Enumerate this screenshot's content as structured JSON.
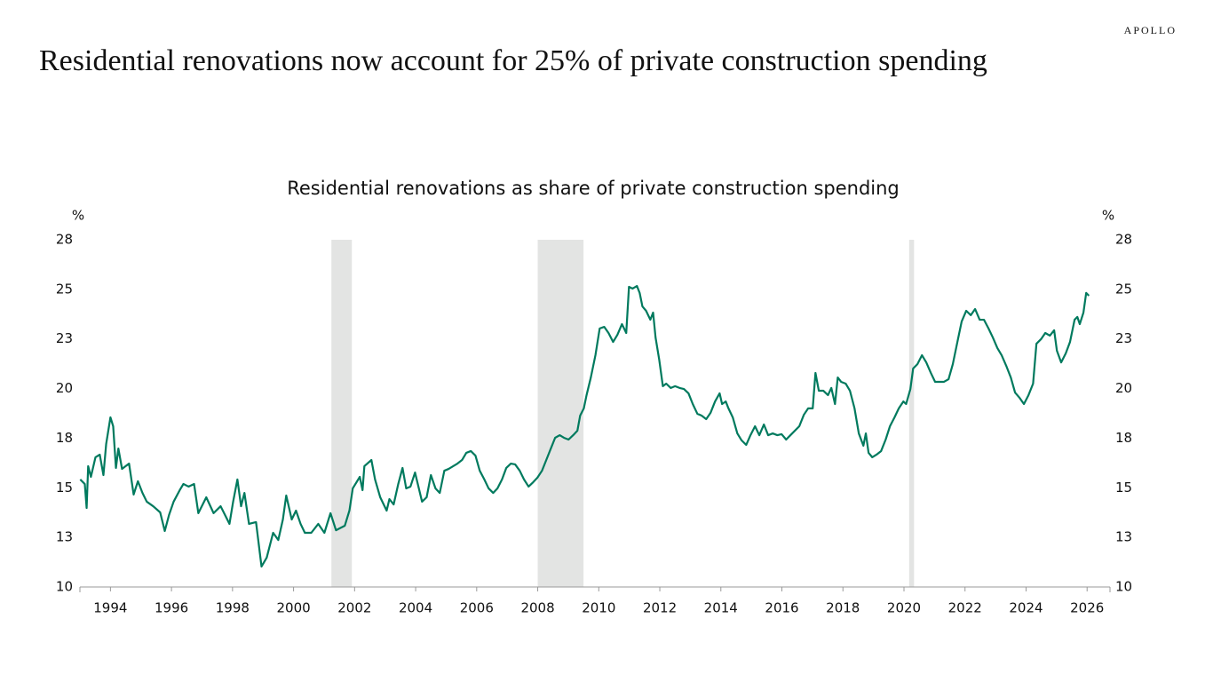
{
  "brand": "APOLLO",
  "title": "Residential renovations now account for 25% of private construction spending",
  "chart_data": {
    "type": "line",
    "subtitle": "Residential renovations as share of private construction spending",
    "y_unit": "%",
    "color": "#007a5e",
    "shade_color": "#e3e4e3",
    "shaded_ranges": [
      [
        2001.24,
        2001.91
      ],
      [
        2008.0,
        2009.5
      ],
      [
        2020.17,
        2020.33
      ]
    ],
    "xlim": [
      1993,
      2026.75
    ],
    "xticks": [
      1994,
      1996,
      1998,
      2000,
      2002,
      2004,
      2006,
      2008,
      2010,
      2012,
      2014,
      2016,
      2018,
      2020,
      2022,
      2024,
      2026
    ],
    "ylim": [
      10,
      27.5
    ],
    "yticks": [
      10,
      {
        "value": 12.5,
        "label": "13"
      },
      15,
      {
        "value": 17.5,
        "label": "18"
      },
      20,
      {
        "value": 22.5,
        "label": "23"
      },
      25,
      {
        "value": 27.5,
        "label": "28"
      }
    ],
    "y2lim": [
      10,
      27.5
    ],
    "y2ticks": [
      10,
      {
        "value": 12.5,
        "label": "13"
      },
      15,
      {
        "value": 17.5,
        "label": "18"
      },
      20,
      {
        "value": 22.5,
        "label": "23"
      },
      25,
      {
        "value": 27.5,
        "label": "28"
      }
    ],
    "x": [
      1993.01,
      1993.16,
      1993.22,
      1993.27,
      1993.36,
      1993.51,
      1993.65,
      1993.77,
      1993.86,
      1994.0,
      1994.09,
      1994.18,
      1994.26,
      1994.38,
      1994.61,
      1994.76,
      1994.9,
      1995.05,
      1995.19,
      1995.4,
      1995.63,
      1995.78,
      1995.92,
      1996.07,
      1996.27,
      1996.39,
      1996.56,
      1996.74,
      1996.88,
      1997.14,
      1997.38,
      1997.61,
      1997.9,
      1998.02,
      1998.16,
      1998.28,
      1998.39,
      1998.54,
      1998.77,
      1998.95,
      1999.12,
      1999.33,
      1999.5,
      1999.65,
      1999.76,
      1999.94,
      2000.08,
      2000.23,
      2000.37,
      2000.58,
      2000.81,
      2001.01,
      2001.21,
      2001.39,
      2001.68,
      2001.83,
      2001.94,
      2002.17,
      2002.26,
      2002.32,
      2002.55,
      2002.67,
      2002.84,
      2003.05,
      2003.14,
      2003.28,
      2003.43,
      2003.57,
      2003.69,
      2003.83,
      2003.98,
      2004.07,
      2004.21,
      2004.36,
      2004.5,
      2004.65,
      2004.79,
      2004.94,
      2005.08,
      2005.23,
      2005.37,
      2005.52,
      2005.66,
      2005.81,
      2005.96,
      2006.1,
      2006.25,
      2006.39,
      2006.54,
      2006.68,
      2006.83,
      2006.97,
      2007.12,
      2007.26,
      2007.41,
      2007.55,
      2007.7,
      2007.85,
      2007.99,
      2008.14,
      2008.28,
      2008.43,
      2008.57,
      2008.72,
      2008.86,
      2009.01,
      2009.16,
      2009.3,
      2009.39,
      2009.51,
      2009.6,
      2009.74,
      2009.89,
      2010.03,
      2010.18,
      2010.32,
      2010.47,
      2010.61,
      2010.76,
      2010.9,
      2010.99,
      2011.11,
      2011.25,
      2011.34,
      2011.43,
      2011.55,
      2011.69,
      2011.78,
      2011.86,
      2011.98,
      2012.1,
      2012.21,
      2012.36,
      2012.5,
      2012.65,
      2012.79,
      2012.94,
      2013.08,
      2013.23,
      2013.37,
      2013.52,
      2013.66,
      2013.81,
      2013.96,
      2014.04,
      2014.16,
      2014.25,
      2014.39,
      2014.54,
      2014.68,
      2014.83,
      2014.97,
      2015.12,
      2015.26,
      2015.41,
      2015.55,
      2015.7,
      2015.85,
      2015.99,
      2016.14,
      2016.28,
      2016.57,
      2016.72,
      2016.86,
      2017.01,
      2017.1,
      2017.21,
      2017.36,
      2017.51,
      2017.62,
      2017.74,
      2017.83,
      2017.94,
      2018.09,
      2018.23,
      2018.38,
      2018.52,
      2018.67,
      2018.75,
      2018.84,
      2018.96,
      2019.1,
      2019.25,
      2019.4,
      2019.54,
      2019.69,
      2019.83,
      2019.98,
      2020.07,
      2020.21,
      2020.3,
      2020.44,
      2020.59,
      2020.73,
      2020.88,
      2021.02,
      2021.17,
      2021.31,
      2021.46,
      2021.6,
      2021.75,
      2021.89,
      2022.04,
      2022.19,
      2022.33,
      2022.48,
      2022.62,
      2022.77,
      2022.91,
      2023.06,
      2023.2,
      2023.35,
      2023.5,
      2023.64,
      2023.79,
      2023.93,
      2024.08,
      2024.23,
      2024.34,
      2024.49,
      2024.63,
      2024.78,
      2024.92,
      2025.01,
      2025.15,
      2025.3,
      2025.44,
      2025.59,
      2025.68,
      2025.76,
      2025.88,
      2025.97,
      2026.06
    ],
    "values": [
      15.42,
      15.19,
      13.98,
      16.09,
      15.55,
      16.54,
      16.67,
      15.64,
      17.21,
      18.55,
      18.1,
      16.0,
      16.98,
      15.95,
      16.22,
      14.66,
      15.33,
      14.74,
      14.3,
      14.07,
      13.76,
      12.82,
      13.63,
      14.3,
      14.88,
      15.19,
      15.06,
      15.19,
      13.72,
      14.52,
      13.72,
      14.07,
      13.18,
      14.3,
      15.42,
      14.07,
      14.74,
      13.18,
      13.27,
      11.03,
      11.48,
      12.73,
      12.37,
      13.4,
      14.61,
      13.4,
      13.85,
      13.18,
      12.73,
      12.73,
      13.18,
      12.73,
      13.72,
      12.86,
      13.09,
      13.85,
      14.97,
      15.55,
      14.88,
      16.09,
      16.4,
      15.42,
      14.52,
      13.85,
      14.43,
      14.16,
      15.19,
      16.0,
      14.97,
      15.06,
      15.77,
      15.19,
      14.3,
      14.52,
      15.64,
      14.97,
      14.74,
      15.86,
      15.95,
      16.09,
      16.22,
      16.4,
      16.76,
      16.85,
      16.62,
      15.86,
      15.42,
      14.97,
      14.74,
      14.97,
      15.42,
      16.0,
      16.22,
      16.18,
      15.86,
      15.42,
      15.06,
      15.28,
      15.51,
      15.86,
      16.4,
      16.98,
      17.52,
      17.65,
      17.52,
      17.43,
      17.65,
      17.88,
      18.64,
      19.0,
      19.67,
      20.56,
      21.68,
      23.03,
      23.11,
      22.8,
      22.35,
      22.71,
      23.25,
      22.8,
      25.13,
      25.04,
      25.17,
      24.82,
      24.14,
      23.92,
      23.47,
      23.83,
      22.58,
      21.46,
      20.12,
      20.25,
      20.03,
      20.12,
      20.03,
      19.98,
      19.76,
      19.22,
      18.73,
      18.64,
      18.46,
      18.77,
      19.35,
      19.76,
      19.22,
      19.35,
      19.0,
      18.55,
      17.74,
      17.39,
      17.16,
      17.65,
      18.1,
      17.65,
      18.19,
      17.65,
      17.74,
      17.65,
      17.7,
      17.43,
      17.65,
      18.1,
      18.68,
      19.0,
      19.0,
      20.79,
      19.89,
      19.89,
      19.67,
      20.03,
      19.22,
      20.56,
      20.34,
      20.25,
      19.89,
      19.0,
      17.74,
      17.12,
      17.74,
      16.76,
      16.54,
      16.67,
      16.85,
      17.43,
      18.1,
      18.55,
      19.0,
      19.35,
      19.22,
      19.98,
      21.01,
      21.23,
      21.68,
      21.32,
      20.79,
      20.34,
      20.34,
      20.34,
      20.47,
      21.23,
      22.35,
      23.38,
      23.92,
      23.7,
      24.01,
      23.47,
      23.47,
      23.03,
      22.58,
      22.04,
      21.68,
      21.15,
      20.56,
      19.8,
      19.53,
      19.22,
      19.67,
      20.25,
      22.26,
      22.49,
      22.8,
      22.67,
      22.94,
      21.91,
      21.32,
      21.77,
      22.35,
      23.47,
      23.61,
      23.25,
      23.83,
      24.82,
      24.68
    ]
  }
}
